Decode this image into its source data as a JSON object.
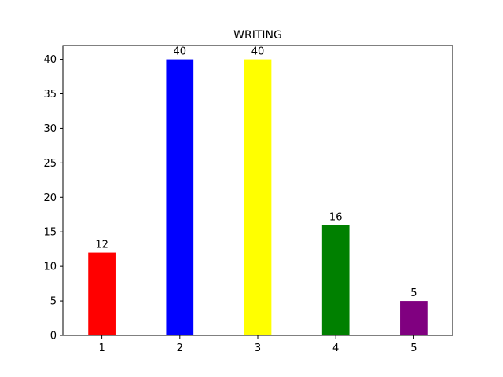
{
  "chart_data": {
    "type": "bar",
    "title": "WRITING",
    "xlabel": "",
    "ylabel": "",
    "categories": [
      "1",
      "2",
      "3",
      "4",
      "5"
    ],
    "values": [
      12,
      40,
      40,
      16,
      5
    ],
    "colors": [
      "#ff0000",
      "#0000ff",
      "#ffff00",
      "#008000",
      "#800080"
    ],
    "ylim": [
      0,
      42
    ],
    "yticks": [
      0,
      5,
      10,
      15,
      20,
      25,
      30,
      35,
      40
    ],
    "grid": false,
    "legend": "none"
  }
}
